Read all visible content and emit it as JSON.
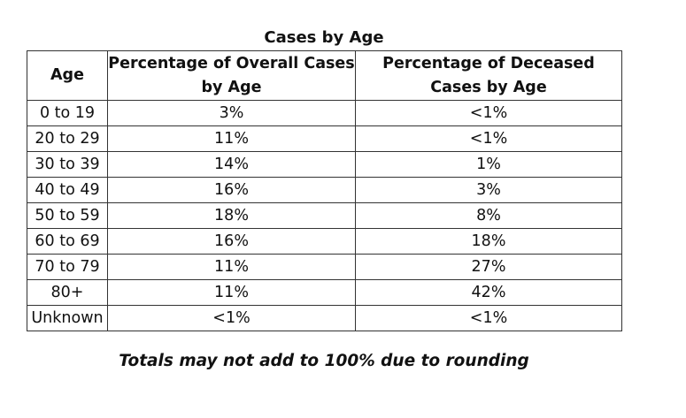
{
  "title": "Cases by Age",
  "table": {
    "headers": {
      "age": "Age",
      "overall": "Percentage of Overall Cases by Age",
      "deceased": "Percentage of Deceased Cases by Age"
    },
    "rows": [
      {
        "age": "0 to 19",
        "overall": "3%",
        "deceased": "<1%"
      },
      {
        "age": "20 to 29",
        "overall": "11%",
        "deceased": "<1%"
      },
      {
        "age": "30 to 39",
        "overall": "14%",
        "deceased": "1%"
      },
      {
        "age": "40 to 49",
        "overall": "16%",
        "deceased": "3%"
      },
      {
        "age": "50 to 59",
        "overall": "18%",
        "deceased": "8%"
      },
      {
        "age": "60 to 69",
        "overall": "16%",
        "deceased": "18%"
      },
      {
        "age": "70 to 79",
        "overall": "11%",
        "deceased": "27%"
      },
      {
        "age": "80+",
        "overall": "11%",
        "deceased": "42%"
      },
      {
        "age": "Unknown",
        "overall": "<1%",
        "deceased": "<1%"
      }
    ]
  },
  "footnote": "Totals may not add to 100% due to rounding"
}
